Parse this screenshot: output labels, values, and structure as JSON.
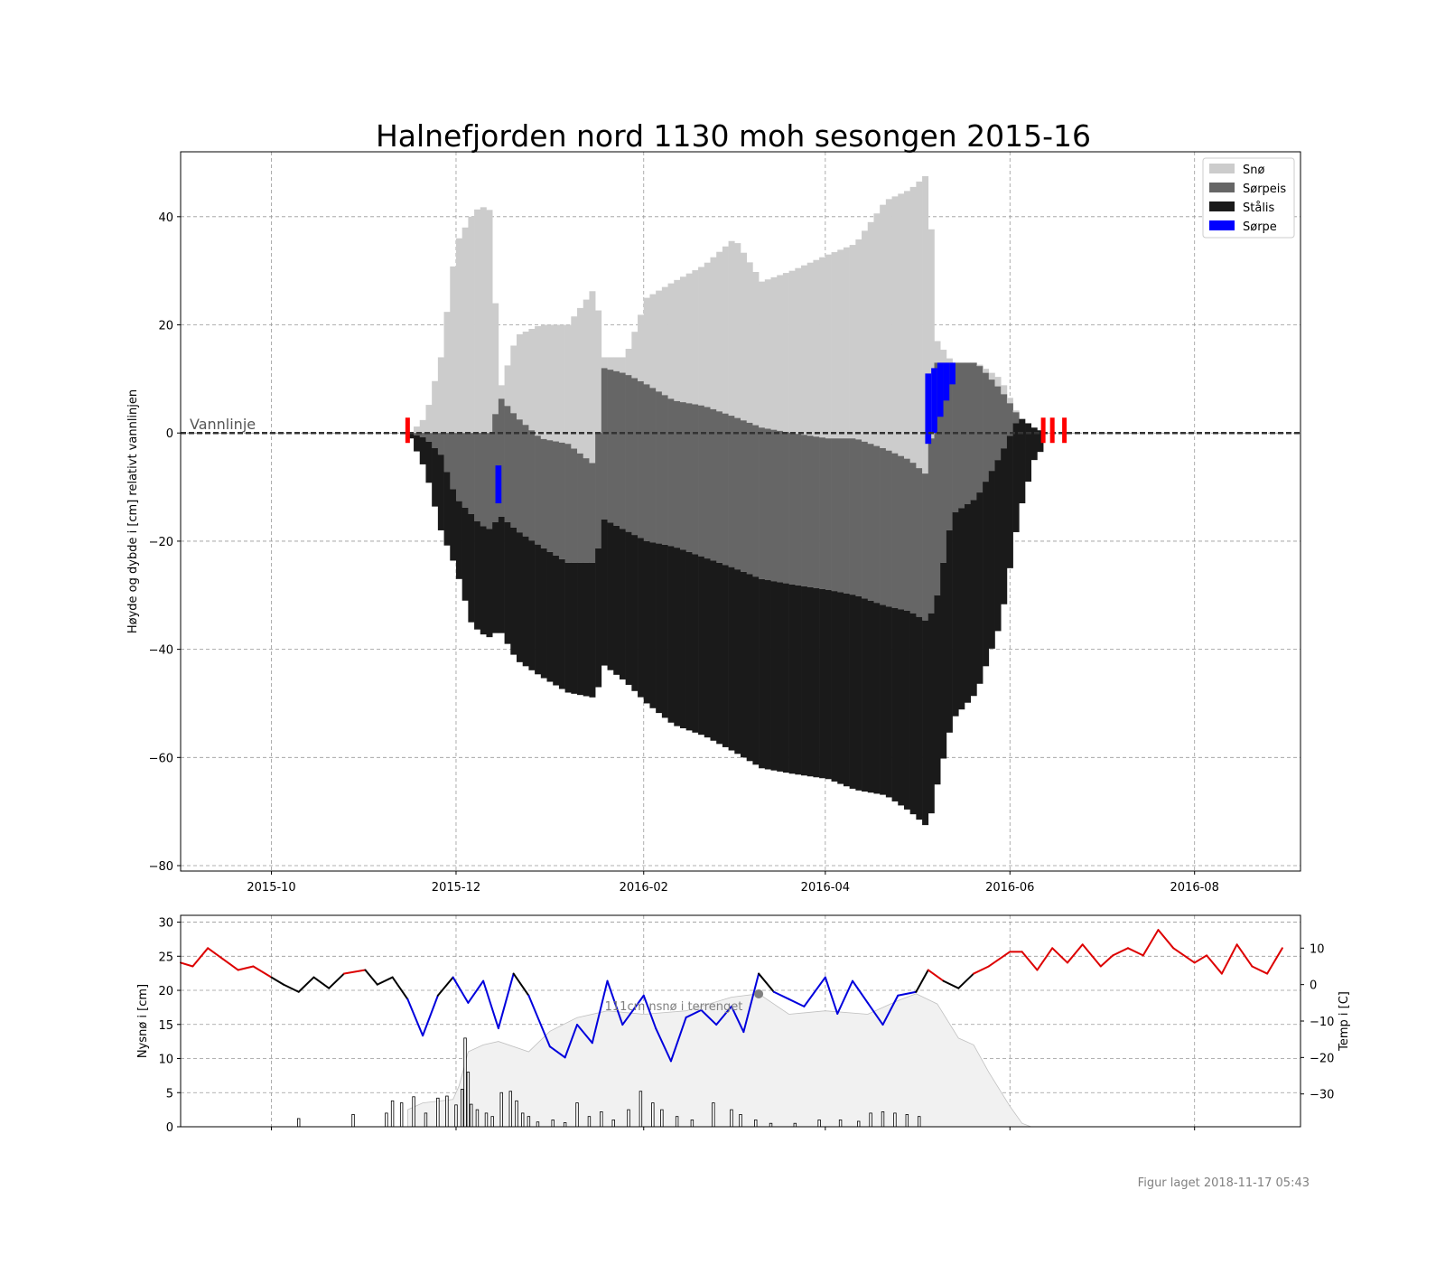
{
  "chart_data": [
    {
      "type": "bar",
      "title": "Halnefjorden nord 1130 moh sesongen 2015-16",
      "ylabel": "Høyde og dybde i [cm] relativt vannlinjen",
      "xlabel": "",
      "x_ticks": [
        "2015-10",
        "2015-12",
        "2016-02",
        "2016-04",
        "2016-06",
        "2016-08"
      ],
      "x_range": [
        "2015-09-01",
        "2016-09-05"
      ],
      "y_ticks": [
        40,
        20,
        0,
        -20,
        -40,
        -60,
        -80
      ],
      "ylim": [
        -81,
        52
      ],
      "grid": true,
      "legend_position": "top-right",
      "annotation": "Vannlinje",
      "waterline_y": 0,
      "legend": [
        {
          "label": "Snø",
          "color": "#cccccc"
        },
        {
          "label": "Sørpeis",
          "color": "#666666"
        },
        {
          "label": "Stålis",
          "color": "#1a1a1a"
        },
        {
          "label": "Sørpe",
          "color": "#0000ff"
        }
      ],
      "ice_cover_markers": [
        "2015-11-15",
        "2016-06-12",
        "2016-06-15",
        "2016-06-19"
      ],
      "series_profile": {
        "dates": [
          "2015-11-15",
          "2015-11-20",
          "2015-11-25",
          "2015-11-30",
          "2015-12-05",
          "2015-12-08",
          "2015-12-12",
          "2015-12-14",
          "2015-12-20",
          "2015-12-28",
          "2016-01-06",
          "2016-01-15",
          "2016-01-18",
          "2016-01-25",
          "2016-02-01",
          "2016-02-10",
          "2016-02-20",
          "2016-03-01",
          "2016-03-10",
          "2016-03-20",
          "2016-04-01",
          "2016-04-10",
          "2016-04-20",
          "2016-04-28",
          "2016-05-04",
          "2016-05-07",
          "2016-05-12",
          "2016-05-20",
          "2016-05-28",
          "2016-06-03",
          "2016-06-08",
          "2016-06-12",
          "2016-06-15",
          "2016-06-19"
        ],
        "snow_top": [
          0,
          3,
          14,
          35,
          40,
          42,
          41,
          7,
          18,
          20,
          20,
          27,
          14,
          14,
          25,
          28,
          31,
          36,
          28,
          30,
          33,
          35,
          43,
          45,
          48,
          17,
          13,
          13,
          10,
          3,
          1,
          0,
          0,
          0
        ],
        "slush_ice_top": [
          0,
          0,
          0,
          0,
          0,
          0,
          0,
          7,
          3,
          -1,
          -2,
          -6,
          12,
          11,
          9,
          6,
          5,
          3,
          1,
          0,
          -1,
          -1,
          -3,
          -5,
          -8,
          13,
          13,
          13,
          8,
          3,
          1,
          0,
          0,
          0
        ],
        "black_ice_top": [
          0,
          -1,
          -4,
          -12,
          -15,
          -17,
          -18,
          -15,
          -18,
          -21,
          -24,
          -24,
          -16,
          -18,
          -20,
          -21,
          -23,
          -25,
          -27,
          -28,
          -29,
          -30,
          -32,
          -33,
          -35,
          -30,
          -15,
          -12,
          -4,
          3,
          1,
          0,
          0,
          0
        ],
        "bottom": [
          -1,
          -7,
          -18,
          -25,
          -35,
          -37,
          -38,
          -36,
          -42,
          -45,
          -48,
          -49,
          -43,
          -46,
          -50,
          -54,
          -56,
          -59,
          -62,
          -63,
          -64,
          -66,
          -67,
          -70,
          -73,
          -65,
          -53,
          -48,
          -35,
          -15,
          -5,
          -2,
          -2,
          -2
        ],
        "slush_segments": [
          {
            "date": "2015-12-14",
            "top": -6,
            "bottom": -13
          },
          {
            "date": "2016-05-04",
            "top": 11,
            "bottom": -2
          },
          {
            "date": "2016-05-06",
            "top": 12,
            "bottom": 0
          },
          {
            "date": "2016-05-08",
            "top": 13,
            "bottom": 3
          },
          {
            "date": "2016-05-10",
            "top": 13,
            "bottom": 6
          },
          {
            "date": "2016-05-12",
            "top": 13,
            "bottom": 9
          }
        ]
      }
    },
    {
      "type": "line",
      "ylabel_left": "Nysnø i [cm]",
      "ylabel_right": "Temp i [C]",
      "y_ticks_left": [
        30,
        25,
        20,
        15,
        10,
        5,
        0
      ],
      "ylim_left": [
        0,
        31
      ],
      "y_ticks_right": [
        10,
        0,
        -10,
        -20,
        -30
      ],
      "ylim_right": [
        -39,
        19
      ],
      "grid": true,
      "annotation": "111cm nsnø i terrenget",
      "max_snow_depth_cm": 111,
      "max_snow_date": "2016-03-10",
      "temperature": {
        "dates": [
          "2015-09-01",
          "2015-09-05",
          "2015-09-10",
          "2015-09-15",
          "2015-09-20",
          "2015-09-25",
          "2015-10-01",
          "2015-10-05",
          "2015-10-10",
          "2015-10-15",
          "2015-10-20",
          "2015-10-25",
          "2015-11-01",
          "2015-11-05",
          "2015-11-10",
          "2015-11-15",
          "2015-11-20",
          "2015-11-25",
          "2015-11-30",
          "2015-12-05",
          "2015-12-10",
          "2015-12-15",
          "2015-12-20",
          "2015-12-25",
          "2016-01-01",
          "2016-01-06",
          "2016-01-10",
          "2016-01-15",
          "2016-01-20",
          "2016-01-25",
          "2016-02-01",
          "2016-02-05",
          "2016-02-10",
          "2016-02-15",
          "2016-02-20",
          "2016-02-25",
          "2016-03-01",
          "2016-03-05",
          "2016-03-10",
          "2016-03-15",
          "2016-03-20",
          "2016-03-25",
          "2016-04-01",
          "2016-04-05",
          "2016-04-10",
          "2016-04-15",
          "2016-04-20",
          "2016-04-25",
          "2016-05-01",
          "2016-05-05",
          "2016-05-10",
          "2016-05-15",
          "2016-05-20",
          "2016-05-25",
          "2016-06-01",
          "2016-06-05",
          "2016-06-10",
          "2016-06-15",
          "2016-06-20",
          "2016-06-25",
          "2016-07-01",
          "2016-07-05",
          "2016-07-10",
          "2016-07-15",
          "2016-07-20",
          "2016-07-25",
          "2016-08-01",
          "2016-08-05",
          "2016-08-10",
          "2016-08-15",
          "2016-08-20",
          "2016-08-25",
          "2016-08-30"
        ],
        "values": [
          6,
          5,
          10,
          7,
          4,
          5,
          2,
          0,
          -2,
          2,
          -1,
          3,
          4,
          0,
          2,
          -4,
          -14,
          -3,
          2,
          -5,
          1,
          -12,
          3,
          -3,
          -17,
          -20,
          -11,
          -16,
          1,
          -11,
          -3,
          -12,
          -21,
          -9,
          -7,
          -11,
          -6,
          -13,
          3,
          -2,
          -4,
          -6,
          2,
          -8,
          1,
          -5,
          -11,
          -3,
          -2,
          4,
          1,
          -1,
          3,
          5,
          9,
          9,
          4,
          10,
          6,
          11,
          5,
          8,
          10,
          8,
          15,
          10,
          6,
          8,
          3,
          11,
          5,
          3,
          10
        ],
        "color_scale": {
          "cold": "#0000dd",
          "mid": "#000000",
          "warm": "#dd0000"
        }
      },
      "new_snow": {
        "dates": [
          "2015-10-10",
          "2015-10-28",
          "2015-11-08",
          "2015-11-10",
          "2015-11-13",
          "2015-11-17",
          "2015-11-21",
          "2015-11-25",
          "2015-11-28",
          "2015-12-01",
          "2015-12-03",
          "2015-12-04",
          "2015-12-05",
          "2015-12-06",
          "2015-12-08",
          "2015-12-11",
          "2015-12-13",
          "2015-12-16",
          "2015-12-19",
          "2015-12-21",
          "2015-12-23",
          "2015-12-25",
          "2015-12-28",
          "2016-01-02",
          "2016-01-06",
          "2016-01-10",
          "2016-01-14",
          "2016-01-18",
          "2016-01-22",
          "2016-01-27",
          "2016-01-31",
          "2016-02-04",
          "2016-02-07",
          "2016-02-12",
          "2016-02-17",
          "2016-02-24",
          "2016-03-01",
          "2016-03-04",
          "2016-03-09",
          "2016-03-14",
          "2016-03-22",
          "2016-03-30",
          "2016-04-06",
          "2016-04-12",
          "2016-04-16",
          "2016-04-20",
          "2016-04-24",
          "2016-04-28",
          "2016-05-02"
        ],
        "values": [
          1.2,
          1.8,
          2,
          3.8,
          3.5,
          4.4,
          2,
          4.2,
          4.5,
          3.2,
          5.5,
          13,
          8,
          3.3,
          2.5,
          2,
          1.5,
          5,
          5.2,
          3.8,
          2,
          1.5,
          0.7,
          1,
          0.6,
          3.5,
          1.5,
          2.2,
          1,
          2.5,
          5.2,
          3.5,
          2.5,
          1.5,
          1,
          3.5,
          2.5,
          1.8,
          1,
          0.5,
          0.5,
          1,
          1,
          0.8,
          2,
          2.2,
          2,
          1.8,
          1.5
        ],
        "bar_color": "#ffffff",
        "edge_color": "#000000"
      },
      "snow_depth_scaled": {
        "dates": [
          "2015-11-15",
          "2015-11-20",
          "2015-11-30",
          "2015-12-02",
          "2015-12-05",
          "2015-12-10",
          "2015-12-15",
          "2015-12-25",
          "2016-01-01",
          "2016-01-10",
          "2016-01-20",
          "2016-02-01",
          "2016-02-15",
          "2016-03-01",
          "2016-03-10",
          "2016-03-20",
          "2016-04-01",
          "2016-04-15",
          "2016-04-25",
          "2016-05-01",
          "2016-05-08",
          "2016-05-15",
          "2016-05-20",
          "2016-05-25",
          "2016-06-01",
          "2016-06-05",
          "2016-06-08"
        ],
        "values": [
          2.5,
          3.5,
          4,
          6,
          11,
          12,
          12.5,
          11,
          14,
          16,
          17,
          16.5,
          17,
          19,
          19.5,
          16.5,
          17,
          16.5,
          18.5,
          19.5,
          18,
          13,
          12,
          8,
          3,
          0.5,
          0
        ],
        "fill": "#f1f1f1"
      }
    }
  ],
  "footer": "Figur laget 2018-11-17 05:43"
}
